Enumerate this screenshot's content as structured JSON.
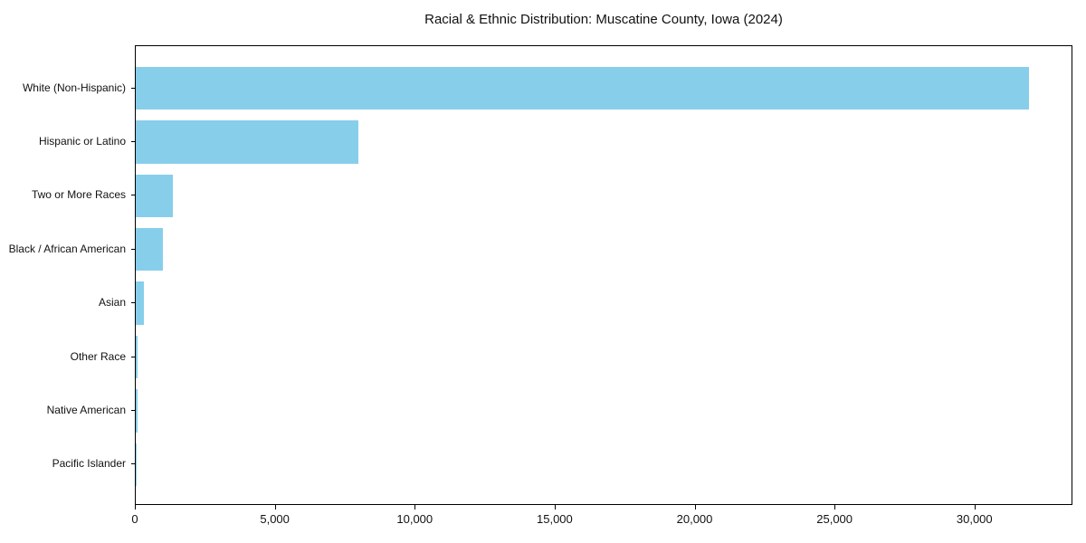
{
  "chart_data": {
    "type": "bar",
    "orientation": "horizontal",
    "title": "Racial & Ethnic Distribution: Muscatine County, Iowa (2024)",
    "categories": [
      "White (Non-Hispanic)",
      "Hispanic or Latino",
      "Two or More Races",
      "Black / African American",
      "Asian",
      "Other Race",
      "Native American",
      "Pacific Islander"
    ],
    "values": [
      31900,
      7970,
      1320,
      970,
      290,
      60,
      50,
      15
    ],
    "xlabel": "",
    "ylabel": "",
    "xlim": [
      0,
      33500
    ],
    "x_ticks": [
      0,
      5000,
      10000,
      15000,
      20000,
      25000,
      30000
    ],
    "x_tick_labels": [
      "0",
      "5,000",
      "10,000",
      "15,000",
      "20,000",
      "25,000",
      "30,000"
    ],
    "bar_color": "#87CEEB",
    "spine_color": "#000000",
    "text_color": "#111111",
    "grid": false,
    "legend": "none"
  }
}
